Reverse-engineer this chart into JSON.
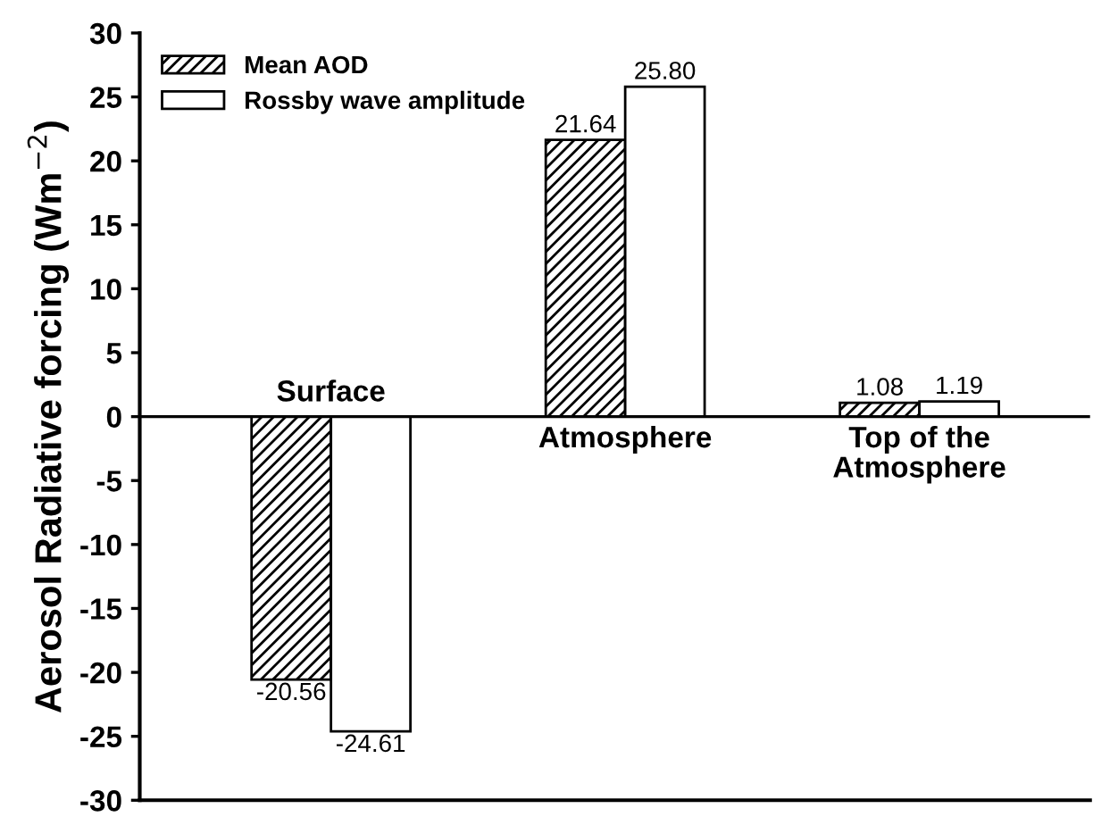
{
  "chart_data": {
    "type": "bar",
    "ylabel": "Aerosol Radiative forcing (Wm$^{−2}$)",
    "categories": [
      "Surface",
      "Atmosphere",
      "Top of the Atmosphere"
    ],
    "series": [
      {
        "name": "Mean AOD",
        "color": "#000000",
        "values": [
          -20.56,
          21.64,
          1.08
        ],
        "value_labels": [
          "-20.56",
          "21.64",
          "1.08"
        ]
      },
      {
        "name": "Rossby wave amplitude",
        "color": "#ffffff",
        "values": [
          -24.61,
          25.8,
          1.19
        ],
        "value_labels": [
          "-24.61",
          "25.80",
          "1.19"
        ]
      }
    ],
    "ylim": [
      -30,
      30
    ],
    "yticks": [
      -30,
      -25,
      -20,
      -15,
      -10,
      -5,
      0,
      5,
      10,
      15,
      20,
      25,
      30
    ],
    "legend": "top left",
    "tick_labels": "y",
    "grid": false
  }
}
